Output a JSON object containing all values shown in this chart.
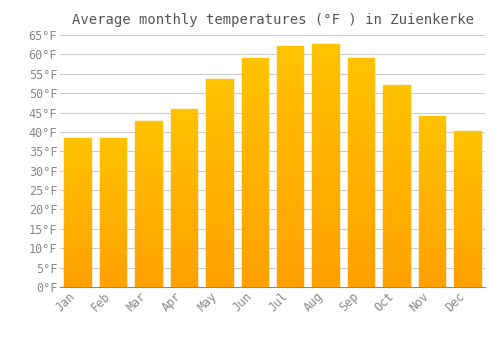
{
  "title": "Average monthly temperatures (°F ) in Zuienkerke",
  "months": [
    "Jan",
    "Feb",
    "Mar",
    "Apr",
    "May",
    "Jun",
    "Jul",
    "Aug",
    "Sep",
    "Oct",
    "Nov",
    "Dec"
  ],
  "values": [
    38.3,
    38.3,
    42.8,
    46.0,
    53.6,
    59.0,
    62.2,
    62.6,
    59.0,
    52.0,
    44.1,
    40.1
  ],
  "bar_color_top": "#FFC200",
  "bar_color_bottom": "#FFA000",
  "background_color": "#FFFFFF",
  "plot_bg_color": "#FFFFFF",
  "grid_color": "#CCCCCC",
  "text_color": "#888888",
  "title_color": "#555555",
  "ylim": [
    0,
    65
  ],
  "ytick_step": 5,
  "title_fontsize": 10,
  "tick_fontsize": 8.5,
  "font_family": "monospace"
}
